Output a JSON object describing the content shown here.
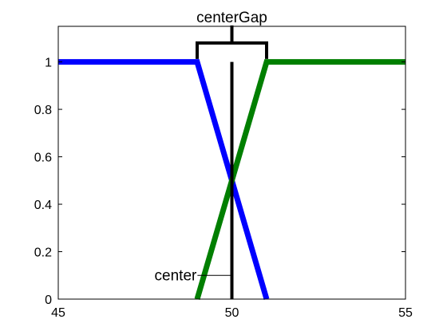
{
  "chart_data": {
    "type": "line",
    "title": "",
    "xlabel": "",
    "ylabel": "",
    "xlim": [
      45,
      55
    ],
    "ylim": [
      0,
      1.15
    ],
    "x_ticks": [
      "45",
      "50",
      "55"
    ],
    "y_ticks": [
      "0",
      "0.2",
      "0.4",
      "0.6",
      "0.8",
      "1"
    ],
    "grid": false,
    "legend": "none",
    "series": [
      {
        "color": "#0000ff",
        "x": [
          45,
          49,
          51
        ],
        "y": [
          1,
          1,
          0
        ]
      },
      {
        "color": "#007f00",
        "x": [
          49,
          51,
          55
        ],
        "y": [
          0,
          1,
          1
        ]
      }
    ],
    "center": {
      "x": 50,
      "y_range": [
        0,
        1
      ],
      "label": "center",
      "label_at": [
        49.1,
        0.1
      ]
    },
    "centerGap": {
      "x_range": [
        49,
        51
      ],
      "y": 1.08,
      "label": "centerGap"
    }
  }
}
